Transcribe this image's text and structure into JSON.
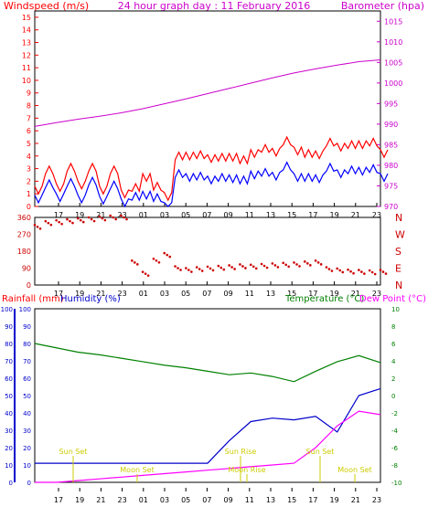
{
  "title": "24 hour graph day : 11 February 2016",
  "colors": {
    "frame": "#000000",
    "windspeed": "#ff0000",
    "windavg": "#0000ff",
    "barometer": "#cc00cc",
    "direction": "#cc0000",
    "rainfall": "#0000cc",
    "humidity": "#0000cc",
    "temperature": "#008000",
    "dewpoint": "#ff00ff",
    "sun": "#cccc00",
    "moon": "#cccc00",
    "grid": "#ccffcc"
  },
  "chart_data": [
    {
      "type": "line",
      "panel": "wind-barometer",
      "left_axis_label": "Windspeed (m/s)",
      "right_axis_label": "Barometer (hpa)",
      "left_ticks": [
        "0",
        "1",
        "2",
        "3",
        "4",
        "5",
        "6",
        "7",
        "8",
        "9",
        "10",
        "11",
        "12",
        "13",
        "14",
        "15"
      ],
      "right_ticks": [
        "970",
        "975",
        "980",
        "985",
        "990",
        "995",
        "1000",
        "1005",
        "1010",
        "1015"
      ],
      "x_ticks": [
        "17",
        "19",
        "21",
        "23",
        "01",
        "03",
        "05",
        "07",
        "09",
        "11",
        "13",
        "15",
        "17",
        "19",
        "21",
        "23"
      ],
      "ylim_left": [
        0,
        15.5
      ],
      "ylim_right": [
        965,
        1017
      ],
      "series": [
        {
          "name": "Barometer (hpa)",
          "axis": "right",
          "x": [
            0,
            2,
            4,
            6,
            8,
            10,
            12,
            14,
            16,
            18,
            20,
            22,
            24,
            26,
            28,
            30,
            32
          ],
          "values": [
            986.3,
            987.3,
            988.2,
            989.0,
            989.9,
            991.0,
            992.3,
            993.6,
            995.0,
            996.4,
            997.8,
            999.2,
            1000.5,
            1001.6,
            1002.6,
            1003.5,
            1004.0
          ]
        },
        {
          "name": "Windspeed (m/s)",
          "axis": "left",
          "x": [
            0,
            1,
            2,
            3,
            4,
            5,
            6,
            7,
            8,
            9,
            10,
            11,
            12,
            13,
            14,
            15,
            16,
            17,
            18,
            19,
            20,
            21,
            22,
            23,
            24,
            25,
            26,
            27,
            28,
            29,
            30,
            31,
            32
          ],
          "values": [
            1.6,
            2.6,
            1.8,
            2.8,
            2.0,
            2.8,
            1.6,
            2.6,
            1.3,
            1.2,
            2.6,
            1.3,
            1.1,
            3.7,
            4.3,
            3.8,
            4.1,
            3.6,
            4.2,
            3.4,
            4.5,
            4.3,
            4.6,
            4.9,
            4.7,
            3.9,
            4.4,
            4.8,
            5.0,
            4.6,
            5.2,
            4.8,
            4.5
          ]
        },
        {
          "name": "Average",
          "axis": "left",
          "x": [
            0,
            1,
            2,
            3,
            4,
            5,
            6,
            7,
            8,
            9,
            10,
            11,
            12,
            13,
            14,
            15,
            16,
            17,
            18,
            19,
            20,
            21,
            22,
            23,
            24,
            25,
            26,
            27,
            28,
            29,
            30,
            31,
            32
          ],
          "values": [
            0.9,
            1.5,
            1.0,
            1.6,
            0.9,
            1.7,
            0.8,
            1.4,
            0.6,
            0.5,
            1.2,
            0.4,
            0.3,
            2.3,
            2.6,
            2.1,
            2.4,
            2.0,
            2.5,
            1.8,
            2.8,
            2.4,
            2.7,
            2.9,
            2.6,
            2.0,
            2.5,
            2.8,
            2.9,
            2.6,
            3.1,
            2.7,
            2.6
          ]
        }
      ]
    },
    {
      "type": "scatter",
      "panel": "wind-direction",
      "left_ticks": [
        "0",
        "90",
        "180",
        "270",
        "360"
      ],
      "right_ticks": [
        "N",
        "W",
        "S",
        "E",
        "N"
      ],
      "x_ticks": [
        "17",
        "19",
        "21",
        "23",
        "01",
        "03",
        "05",
        "07",
        "09",
        "11",
        "13",
        "15",
        "17",
        "19",
        "21",
        "23"
      ],
      "ylim": [
        0,
        360
      ],
      "series": [
        {
          "name": "Wind direction",
          "x": [
            0,
            1,
            2,
            3,
            4,
            5,
            6,
            7,
            8,
            9,
            10,
            11,
            12,
            13,
            14,
            15,
            16,
            17,
            18,
            19,
            20,
            21,
            22,
            23,
            24,
            25,
            26,
            27,
            28,
            29,
            30,
            31,
            32
          ],
          "values": [
            310,
            330,
            335,
            340,
            345,
            350,
            355,
            360,
            365,
            120,
            60,
            130,
            160,
            90,
            80,
            85,
            88,
            92,
            95,
            100,
            98,
            102,
            105,
            108,
            110,
            115,
            120,
            85,
            78,
            72,
            70,
            68,
            70
          ]
        }
      ]
    },
    {
      "type": "line",
      "panel": "rain-humidity-temperature",
      "left_axis_label": "Rainfall (mm)",
      "left2_axis_label": "Humidity (%)",
      "right_axis_label": "Temperature (°C)",
      "right2_axis_label": "Dew Point (°C)",
      "left_ticks": [
        "0",
        "10",
        "20",
        "30",
        "40",
        "50",
        "60",
        "70",
        "80",
        "90",
        "100"
      ],
      "right_ticks": [
        "-10",
        "-8",
        "-6",
        "-4",
        "-2",
        "0",
        "2",
        "4",
        "6",
        "8",
        "10"
      ],
      "x_ticks": [
        "17",
        "19",
        "21",
        "23",
        "01",
        "03",
        "05",
        "07",
        "09",
        "11",
        "13",
        "15",
        "17",
        "19",
        "21",
        "23"
      ],
      "ylim_left": [
        0,
        100
      ],
      "ylim_right": [
        -10,
        10
      ],
      "annotations": [
        "Sun Set",
        "Moon Set",
        "Sun Rise",
        "Moon Rise",
        "Sun Set",
        "Moon Set"
      ],
      "series": [
        {
          "name": "Humidity (%)",
          "axis": "left",
          "x": [
            0,
            2,
            4,
            6,
            8,
            10,
            12,
            14,
            16,
            18,
            20,
            22,
            24,
            26,
            28,
            30,
            32
          ],
          "values": [
            11,
            11,
            11,
            11,
            11,
            11,
            11,
            11,
            11,
            24,
            35,
            37,
            36,
            38,
            29,
            50,
            54
          ]
        },
        {
          "name": "Temperature (°C)",
          "axis": "right",
          "x": [
            0,
            2,
            4,
            6,
            8,
            10,
            12,
            14,
            16,
            18,
            20,
            22,
            24,
            26,
            28,
            30,
            32
          ],
          "values": [
            6.0,
            5.5,
            5.0,
            4.7,
            4.3,
            3.9,
            3.5,
            3.2,
            2.8,
            2.4,
            2.6,
            2.2,
            1.6,
            2.8,
            3.9,
            4.6,
            3.8
          ]
        },
        {
          "name": "Dew Point (°C)",
          "axis": "right",
          "x": [
            0,
            2,
            4,
            6,
            8,
            10,
            12,
            14,
            16,
            18,
            20,
            22,
            24,
            26,
            28,
            30,
            32
          ],
          "values": [
            -10.2,
            -10.0,
            -9.8,
            -9.6,
            -9.4,
            -9.2,
            -9.0,
            -8.8,
            -8.6,
            -8.4,
            -8.2,
            -8.0,
            -7.8,
            -6.0,
            -3.5,
            -1.8,
            -2.2
          ]
        }
      ]
    }
  ]
}
